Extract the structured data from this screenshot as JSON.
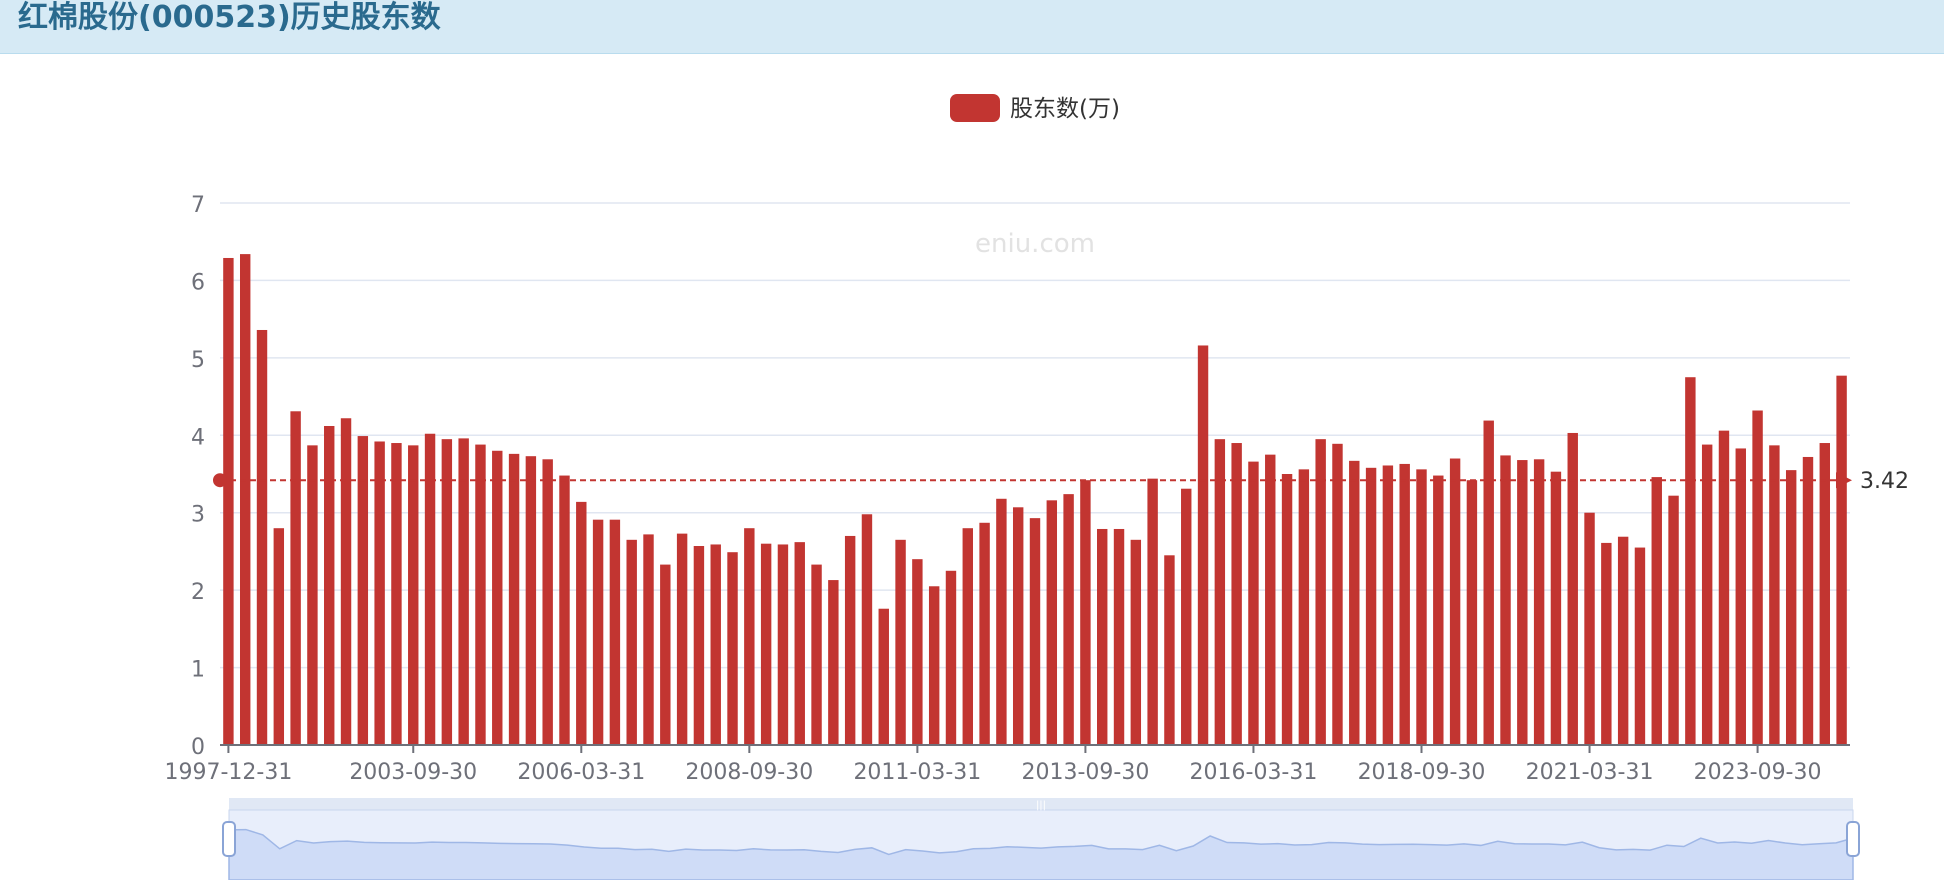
{
  "header": {
    "title": "红棉股份(000523)历史股东数"
  },
  "watermark": "eniu.com",
  "colors": {
    "bar": "#c23531",
    "header_bg": "#d6eaf5",
    "title": "#2a6a8e",
    "zoom_fill": "#cfdcf7"
  },
  "chart_data": {
    "type": "bar",
    "legend": {
      "label": "股东数(万)",
      "position": "top-center"
    },
    "ylim": [
      0,
      7
    ],
    "y_ticks": [
      "0",
      "1",
      "2",
      "3",
      "4",
      "5",
      "6",
      "7"
    ],
    "x_tick_labels": [
      "1997-12-31",
      "2003-09-30",
      "2006-03-31",
      "2008-09-30",
      "2011-03-31",
      "2013-09-30",
      "2016-03-31",
      "2018-09-30",
      "2021-03-31",
      "2023-09-30"
    ],
    "values": [
      6.29,
      6.34,
      5.36,
      2.8,
      4.31,
      3.87,
      4.12,
      4.22,
      3.99,
      3.92,
      3.9,
      3.87,
      4.02,
      3.95,
      3.96,
      3.88,
      3.8,
      3.76,
      3.73,
      3.69,
      3.48,
      3.14,
      2.91,
      2.91,
      2.65,
      2.72,
      2.33,
      2.73,
      2.57,
      2.59,
      2.49,
      2.8,
      2.6,
      2.59,
      2.62,
      2.33,
      2.13,
      2.7,
      2.98,
      1.76,
      2.65,
      2.4,
      2.05,
      2.25,
      2.8,
      2.87,
      3.18,
      3.07,
      2.93,
      3.16,
      3.24,
      3.42,
      2.79,
      2.79,
      2.65,
      3.44,
      2.45,
      3.31,
      5.16,
      3.95,
      3.9,
      3.66,
      3.75,
      3.5,
      3.56,
      3.95,
      3.89,
      3.67,
      3.58,
      3.61,
      3.63,
      3.56,
      3.48,
      3.7,
      3.42,
      4.19,
      3.74,
      3.68,
      3.69,
      3.53,
      4.03,
      3.0,
      2.61,
      2.69,
      2.55,
      3.46,
      3.22,
      4.75,
      3.88,
      4.06,
      3.83,
      4.32,
      3.87,
      3.55,
      3.72,
      3.9,
      4.77
    ],
    "mark_line": {
      "value": 3.42,
      "label": "3.42"
    }
  }
}
